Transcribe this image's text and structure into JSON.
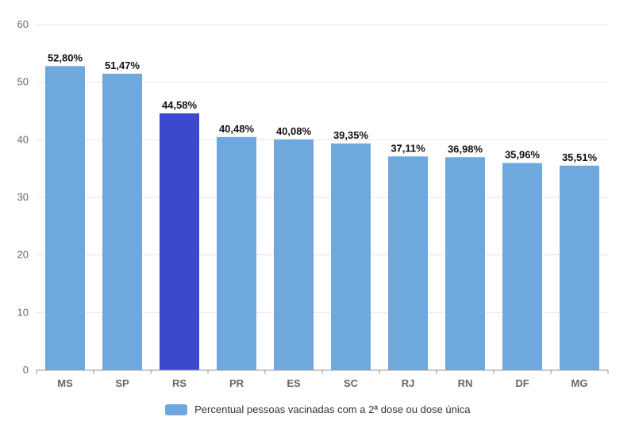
{
  "chart_data": {
    "type": "bar",
    "categories": [
      "MS",
      "SP",
      "RS",
      "PR",
      "ES",
      "SC",
      "RJ",
      "RN",
      "DF",
      "MG"
    ],
    "series": [
      {
        "name": "Percentual pessoas vacinadas com a 2ª dose ou dose única",
        "values": [
          52.8,
          51.47,
          44.58,
          40.48,
          40.08,
          39.35,
          37.11,
          36.98,
          35.96,
          35.51
        ],
        "data_labels": [
          "52,80%",
          "51,47%",
          "44,58%",
          "40,48%",
          "40,08%",
          "39,35%",
          "37,11%",
          "36,98%",
          "35,96%",
          "35,51%"
        ]
      }
    ],
    "highlight_category": "RS",
    "ylim": [
      0,
      60
    ],
    "y_ticks": [
      0,
      10,
      20,
      30,
      40,
      50,
      60
    ],
    "grid": true,
    "legend_position": "bottom-center",
    "colors": {
      "bar": "#6fa8dc",
      "highlight": "#3d49cc",
      "grid": "#e6e6e6",
      "axis": "#999999",
      "tick_text": "#666666",
      "label_text": "#111111"
    }
  }
}
